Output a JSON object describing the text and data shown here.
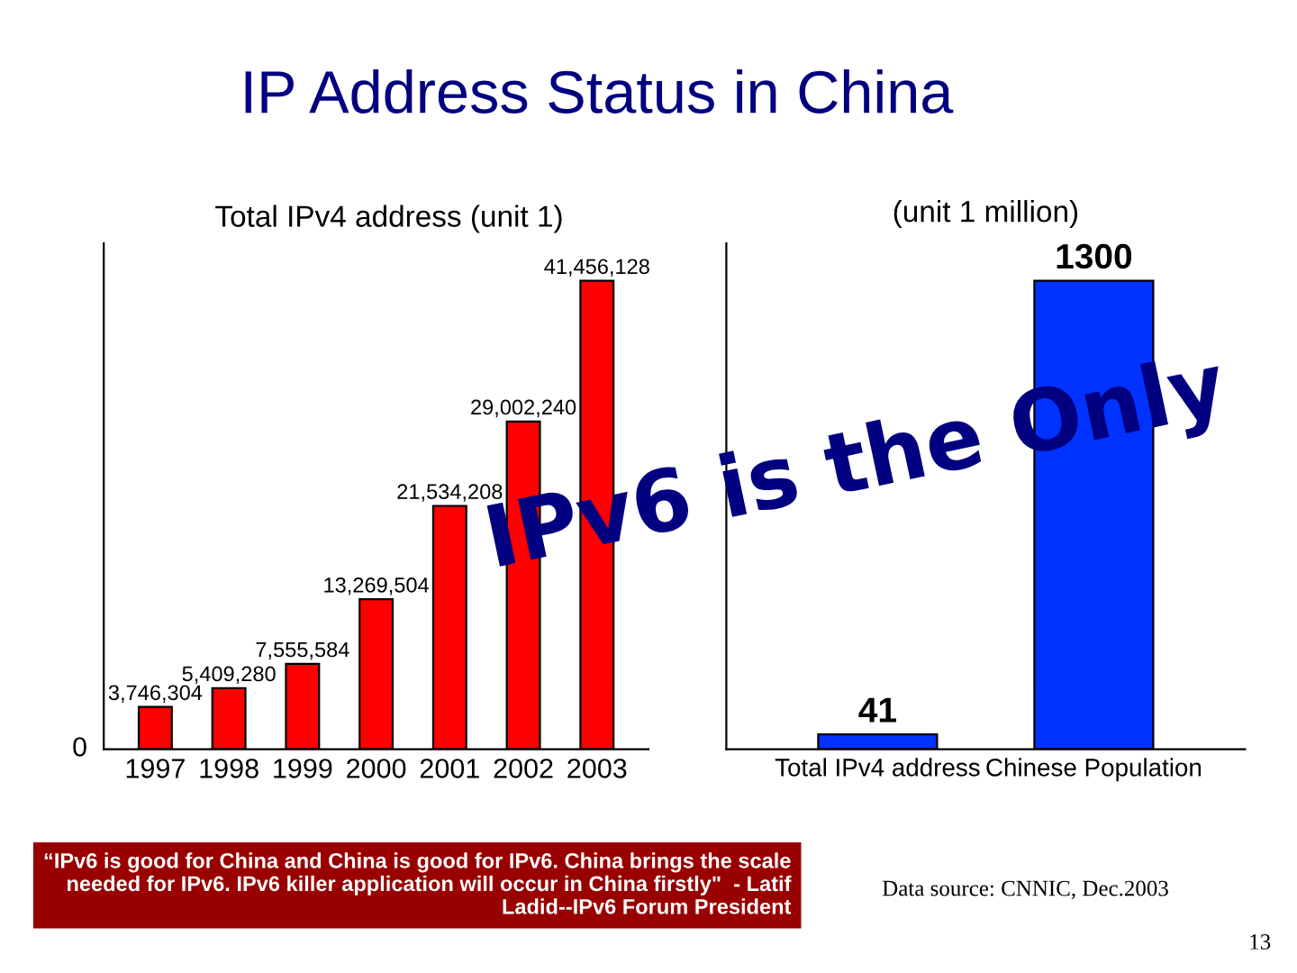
{
  "chart_data": [
    {
      "type": "bar",
      "title": "IP Address Status in China",
      "subtitle": "Total IPv4 address (unit 1)",
      "categories": [
        "1997",
        "1998",
        "1999",
        "2000",
        "2001",
        "2002",
        "2003"
      ],
      "values": [
        3746304,
        5409280,
        7555584,
        13269504,
        21534208,
        29002240,
        41456128
      ],
      "value_labels": [
        "3,746,304",
        "5,409,280",
        "7,555,584",
        "13,269,504",
        "21,534,208",
        "29,002,240",
        "41,456,128"
      ],
      "color": "#ff0000",
      "annotations": [
        "0"
      ],
      "grid": false
    },
    {
      "type": "bar",
      "title": "(unit 1 million)",
      "categories": [
        "Total IPv4 address",
        "Chinese Population"
      ],
      "values": [
        41,
        1300
      ],
      "colors": [
        "#0033ff",
        "#0033ff"
      ],
      "data_labels": true,
      "tick_labels": "x",
      "grid": false,
      "annotations": [
        "IPv6 is the Only",
        "“IPv6 is good for China and China is good for IPv6. China brings the scale needed for IPv6. IPv6 killer application will occur in China firstly\"  - Latif Ladid--IPv6 Forum President",
        "Data source: CNNIC, Dec.2003",
        "13"
      ]
    }
  ]
}
